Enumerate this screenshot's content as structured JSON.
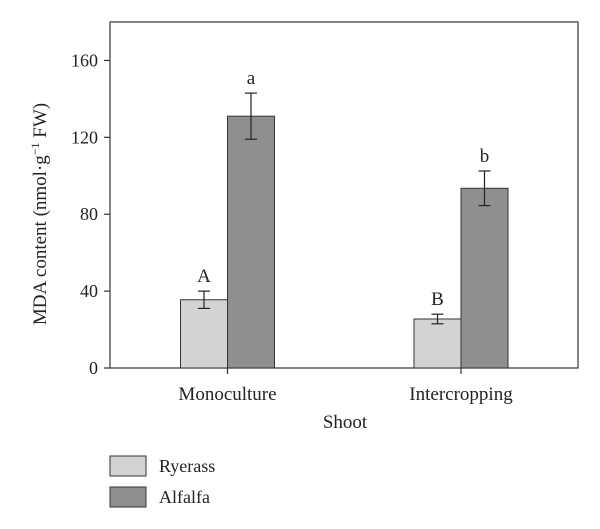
{
  "chart_data": {
    "type": "bar",
    "title": "",
    "xlabel": "Shoot",
    "ylabel_main": "MDA content (nmol·g",
    "ylabel_sup": "−1",
    "ylabel_tail": " FW)",
    "ylim": [
      0,
      180
    ],
    "yticks": [
      0,
      40,
      80,
      120,
      160
    ],
    "categories": [
      "Monoculture",
      "Intercropping"
    ],
    "series": [
      {
        "name": "Ryerass",
        "color": "#d3d3d3",
        "values": [
          35.5,
          25.5
        ],
        "errors": [
          4.5,
          2.5
        ],
        "letters": [
          "A",
          "B"
        ]
      },
      {
        "name": "Alfalfa",
        "color": "#8f8f8f",
        "values": [
          131,
          93.5
        ],
        "errors": [
          12,
          9
        ],
        "letters": [
          "a",
          "b"
        ]
      }
    ],
    "grid": false,
    "legend_position": "bottom-left"
  }
}
